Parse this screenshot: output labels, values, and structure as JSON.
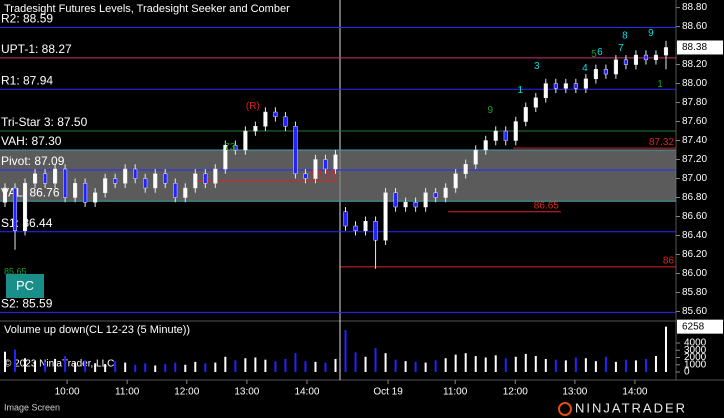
{
  "chart_data": {
    "type": "candlestick",
    "title": "Tradesight Futures Levels, Tradesight Seeker and Comber",
    "xlim": [
      0,
      135
    ],
    "xticks": [
      {
        "value": 13.4,
        "label": "10:00"
      },
      {
        "value": 25.4,
        "label": "11:00"
      },
      {
        "value": 37.3,
        "label": "12:00"
      },
      {
        "value": 49.3,
        "label": "13:00"
      },
      {
        "value": 61.3,
        "label": "14:00"
      },
      {
        "value": 77.5,
        "label": "Oct 19"
      },
      {
        "value": 90.9,
        "label": "11:00"
      },
      {
        "value": 102.9,
        "label": "12:00"
      },
      {
        "value": 114.8,
        "label": "13:00"
      },
      {
        "value": 126.8,
        "label": "14:00"
      }
    ],
    "ylim": [
      85.51,
      88.88
    ],
    "yticks": [
      {
        "value": 85.6,
        "label": "85.60"
      },
      {
        "value": 85.8,
        "label": "85.80"
      },
      {
        "value": 86.0,
        "label": "86.00"
      },
      {
        "value": 86.2,
        "label": "86.20"
      },
      {
        "value": 86.4,
        "label": "86.40"
      },
      {
        "value": 86.6,
        "label": "86.60"
      },
      {
        "value": 86.8,
        "label": "86.80"
      },
      {
        "value": 87.0,
        "label": "87.00"
      },
      {
        "value": 87.2,
        "label": "87.20"
      },
      {
        "value": 87.4,
        "label": "87.40"
      },
      {
        "value": 87.6,
        "label": "87.60"
      },
      {
        "value": 87.8,
        "label": "87.80"
      },
      {
        "value": 88.0,
        "label": "88.00"
      },
      {
        "value": 88.2,
        "label": "88.20"
      },
      {
        "value": 88.6,
        "label": "88.60"
      },
      {
        "value": 88.8,
        "label": "88.80"
      }
    ],
    "up_color": "#ffffff",
    "down_color": "#2323ff",
    "candles": {
      "x": [
        1,
        3,
        5,
        7,
        9,
        11,
        13,
        15,
        17,
        19,
        21,
        23,
        25,
        27,
        29,
        31,
        33,
        35,
        37,
        39,
        41,
        43,
        45,
        47,
        49,
        51,
        53,
        55,
        57,
        59,
        61,
        63,
        65,
        67,
        69,
        71,
        73,
        75,
        77,
        79,
        81,
        83,
        85,
        87,
        89,
        91,
        93,
        95,
        97,
        99,
        101,
        103,
        105,
        107,
        109,
        111,
        113,
        115,
        117,
        119,
        121,
        123,
        125,
        127,
        129,
        131,
        133
      ],
      "open": [
        86.75,
        86.9,
        86.45,
        86.95,
        87.05,
        86.95,
        87.1,
        86.8,
        86.95,
        86.75,
        86.85,
        87.0,
        86.95,
        87.1,
        87.0,
        86.9,
        87.05,
        86.95,
        86.8,
        86.9,
        87.05,
        86.95,
        87.1,
        87.35,
        87.3,
        87.5,
        87.55,
        87.7,
        87.65,
        87.55,
        87.05,
        87.0,
        87.2,
        87.1,
        86.65,
        86.5,
        86.45,
        86.55,
        86.35,
        86.85,
        86.7,
        86.75,
        86.7,
        86.85,
        86.8,
        86.9,
        87.05,
        87.15,
        87.3,
        87.4,
        87.5,
        87.4,
        87.6,
        87.75,
        87.85,
        88.0,
        87.95,
        88.0,
        87.95,
        88.05,
        88.15,
        88.1,
        88.25,
        88.2,
        88.3,
        88.25,
        88.3
      ],
      "high": [
        86.95,
        86.95,
        87.0,
        87.1,
        87.1,
        87.15,
        87.15,
        87.0,
        87.0,
        86.9,
        87.05,
        87.05,
        87.15,
        87.15,
        87.05,
        87.1,
        87.1,
        87.0,
        86.95,
        87.1,
        87.1,
        87.15,
        87.4,
        87.4,
        87.55,
        87.6,
        87.75,
        87.75,
        87.7,
        87.6,
        87.1,
        87.25,
        87.25,
        87.3,
        86.7,
        86.55,
        86.6,
        86.6,
        86.9,
        86.9,
        86.8,
        86.8,
        86.9,
        86.9,
        86.95,
        87.1,
        87.2,
        87.35,
        87.45,
        87.55,
        87.55,
        87.65,
        87.8,
        87.9,
        88.05,
        88.05,
        88.05,
        88.05,
        88.1,
        88.2,
        88.2,
        88.3,
        88.3,
        88.35,
        88.35,
        88.35,
        88.45
      ],
      "low": [
        86.7,
        86.25,
        86.4,
        86.9,
        86.9,
        86.9,
        86.75,
        86.75,
        86.7,
        86.7,
        86.8,
        86.9,
        86.9,
        86.95,
        86.85,
        86.85,
        86.9,
        86.75,
        86.75,
        86.85,
        86.9,
        86.9,
        87.05,
        87.25,
        87.25,
        87.45,
        87.5,
        87.6,
        87.5,
        87.0,
        86.95,
        86.95,
        87.05,
        87.05,
        86.45,
        86.4,
        86.4,
        86.05,
        86.3,
        86.65,
        86.65,
        86.65,
        86.65,
        86.75,
        86.75,
        86.85,
        87.0,
        87.1,
        87.25,
        87.35,
        87.35,
        87.35,
        87.55,
        87.7,
        87.8,
        87.9,
        87.9,
        87.9,
        87.9,
        88.0,
        88.05,
        88.05,
        88.15,
        88.15,
        88.2,
        88.2,
        88.15
      ],
      "close": [
        86.9,
        86.45,
        86.95,
        87.05,
        86.95,
        87.1,
        86.8,
        86.95,
        86.75,
        86.85,
        87.0,
        86.95,
        87.1,
        87.0,
        86.9,
        87.05,
        86.95,
        86.8,
        86.9,
        87.05,
        86.95,
        87.1,
        87.35,
        87.3,
        87.5,
        87.55,
        87.7,
        87.65,
        87.55,
        87.05,
        87.0,
        87.2,
        87.1,
        87.25,
        86.5,
        86.45,
        86.55,
        86.35,
        86.85,
        86.7,
        86.75,
        86.7,
        86.85,
        86.8,
        86.9,
        87.05,
        87.15,
        87.3,
        87.4,
        87.5,
        87.4,
        87.6,
        87.75,
        87.85,
        88.0,
        87.95,
        88.0,
        87.95,
        88.05,
        88.15,
        88.1,
        88.25,
        88.2,
        88.3,
        88.25,
        88.3,
        88.38
      ]
    },
    "levels": [
      {
        "label": "R2: 88.59",
        "value": 88.59,
        "color": "#2a2aff"
      },
      {
        "label": "UPT-1: 88.27",
        "value": 88.27,
        "color": "#c8307a"
      },
      {
        "label": "R1: 87.94",
        "value": 87.94,
        "color": "#2a2aff"
      },
      {
        "label": "Tri-Star 3: 87.50",
        "value": 87.5,
        "color": "#1f7a35"
      },
      {
        "label": "VAH: 87.30",
        "value": 87.3,
        "color": "#40a0a8"
      },
      {
        "label": "Pivot: 87.09",
        "value": 87.09,
        "color": "#2a2aff"
      },
      {
        "label": "VAL: 86.76",
        "value": 86.76,
        "color": "#40a0a8"
      },
      {
        "label": "S1: 86.44",
        "value": 86.44,
        "color": "#2a2aff"
      },
      {
        "label": "S2: 85.59",
        "value": 85.59,
        "color": "#2a2aff"
      }
    ],
    "value_area_color": "#7a7a7a",
    "signals": [
      {
        "label": 87.32,
        "value": 87.32,
        "x_start": 102.5,
        "x_end": 135
      },
      {
        "label": 86.98,
        "value": 86.98,
        "x_start": 39.5,
        "x_end": 67.5
      },
      {
        "label": 86.65,
        "value": 86.65,
        "x_start": 89.5,
        "x_end": 112
      },
      {
        "label": 86,
        "value": 86.07,
        "x_start": 68,
        "x_end": 135
      }
    ],
    "signal_color": "#e02020",
    "annotations": [
      {
        "text": "9",
        "x": 130,
        "price": 88.53,
        "color": "#00e0e0"
      },
      {
        "text": "8",
        "x": 124.8,
        "price": 88.5,
        "color": "#00e0e0"
      },
      {
        "text": "7",
        "x": 124,
        "price": 88.37,
        "color": "#00e0e0"
      },
      {
        "text": "6",
        "x": 119.8,
        "price": 88.33,
        "color": "#00e0e0"
      },
      {
        "text": "5",
        "x": 118.6,
        "price": 88.31,
        "color": "#1fa01f"
      },
      {
        "text": "4",
        "x": 116.8,
        "price": 88.16,
        "color": "#00e0e0"
      },
      {
        "text": "3",
        "x": 107.2,
        "price": 88.18,
        "color": "#00e0e0"
      },
      {
        "text": "1",
        "x": 103.9,
        "price": 87.93,
        "color": "#00e0e0"
      },
      {
        "text": "9",
        "x": 97.9,
        "price": 87.72,
        "color": "#1fa01f"
      },
      {
        "text": "(R)",
        "x": 50.5,
        "price": 87.76,
        "color": "#e02020"
      },
      {
        "text": "73",
        "x": 45.9,
        "price": 87.33,
        "color": "#1fa01f"
      },
      {
        "text": "1",
        "x": 131.8,
        "price": 87.99,
        "color": "#1fa01f"
      }
    ],
    "side_note": "85.65",
    "badge": "PC",
    "volume_panel": {
      "title": "Volume up down(CL 12-23 (5 Minute))",
      "values": [
        2800,
        3100,
        1900,
        1500,
        1400,
        1800,
        2200,
        1300,
        1600,
        1200,
        1100,
        1500,
        1300,
        1000,
        1200,
        900,
        1100,
        1300,
        1000,
        1400,
        1200,
        1300,
        2100,
        1600,
        1900,
        2000,
        1700,
        1500,
        1800,
        2600,
        1500,
        1400,
        1300,
        1800,
        5800,
        2700,
        2100,
        3300,
        2600,
        1700,
        1500,
        1400,
        1300,
        1600,
        1900,
        2400,
        2600,
        2200,
        2000,
        2300,
        1900,
        2100,
        2500,
        2200,
        1800,
        1700,
        1600,
        2000,
        1900,
        1500,
        2100,
        1400,
        1700,
        1600,
        1800,
        2200,
        6258
      ],
      "ylim": [
        0,
        6900
      ],
      "yticks": [
        0,
        1000,
        2000,
        3000,
        4000
      ]
    },
    "copyright": "© 2023 NinjaTrader, LLC"
  },
  "footer": {
    "left": "Image Screen",
    "logo": "NINJATRADER"
  }
}
